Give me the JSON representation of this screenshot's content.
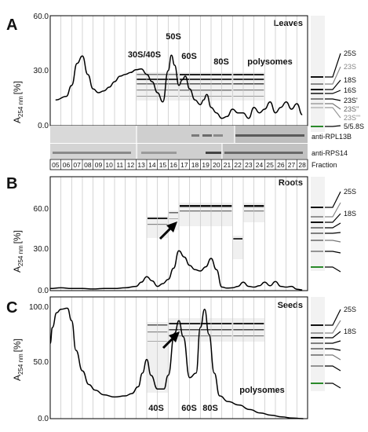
{
  "figure": {
    "panels": [
      {
        "letter": "A",
        "tissue": "Leaves",
        "ylabel_main": "A",
        "ylabel_sub": "254 nm",
        "ylabel_unit": "[%]",
        "yticks": [
          "60.0",
          "30.0",
          "0.0"
        ],
        "peak_labels": [
          "30S/40S",
          "50S",
          "60S",
          "80S",
          "polysomes"
        ],
        "rrna_labels": [
          "25S",
          "23S",
          "18S",
          "16S",
          "23S'",
          "23S''",
          "23S'''",
          "5/5.8S"
        ],
        "blot_labels": [
          "anti-RPL13B",
          "anti-RPS14"
        ],
        "fraction_label": "Fraction",
        "fractions": [
          "05",
          "06",
          "07",
          "08",
          "09",
          "10",
          "11",
          "12",
          "13",
          "14",
          "15",
          "16",
          "17",
          "18",
          "19",
          "20",
          "21",
          "22",
          "23",
          "24",
          "25",
          "26",
          "27",
          "28"
        ]
      },
      {
        "letter": "B",
        "tissue": "Roots",
        "ylabel_main": "A",
        "ylabel_sub": "254 nm",
        "ylabel_unit": "[%]",
        "yticks": [
          "60.0",
          "30.0",
          "0.0"
        ],
        "rrna_labels": [
          "25S",
          "18S"
        ]
      },
      {
        "letter": "C",
        "tissue": "Seeds",
        "ylabel_main": "A",
        "ylabel_sub": "254 nm",
        "ylabel_unit": "[%]",
        "yticks": [
          "100.0",
          "50.0",
          "0.0"
        ],
        "peak_labels": [
          "40S",
          "60S",
          "80S",
          "polysomes"
        ],
        "rrna_labels": [
          "25S",
          "18S"
        ]
      }
    ]
  },
  "chart_data": [
    {
      "type": "line",
      "panel": "A",
      "ylabel": "A254 nm [%]",
      "ylim": [
        0,
        60
      ],
      "x_fraction": [
        5.5,
        6.5,
        7.0,
        7.5,
        8.0,
        8.5,
        9.0,
        9.5,
        10.0,
        10.5,
        11.0,
        11.5,
        12.0,
        12.5,
        13.0,
        13.5,
        14.0,
        14.5,
        15.0,
        15.5,
        16.0,
        16.3,
        16.6,
        17.0,
        17.3,
        17.6,
        18.0,
        18.5,
        19.0,
        19.3,
        19.6,
        20.0,
        20.5,
        21.0,
        21.5,
        22.0,
        22.5,
        23.0,
        23.5,
        24.0,
        24.5,
        25.0,
        25.5,
        26.0,
        26.5,
        27.0,
        27.5,
        28.0,
        28.5
      ],
      "values": [
        14,
        16,
        22,
        34,
        38,
        28,
        20,
        18,
        19,
        21,
        24,
        27,
        28,
        29,
        30.5,
        31,
        28,
        24,
        18,
        13,
        30,
        38.5,
        33,
        22,
        25,
        27,
        20,
        14,
        11.5,
        14,
        17,
        10,
        7,
        4,
        5,
        9,
        7,
        7,
        4,
        10,
        7,
        9,
        13,
        7,
        10,
        13,
        9,
        12,
        6
      ]
    },
    {
      "type": "line",
      "panel": "B",
      "ylabel": "A254 nm [%]",
      "ylim": [
        0,
        60
      ],
      "x_fraction": [
        5.0,
        6.0,
        7.0,
        8.0,
        9.0,
        10.0,
        11.0,
        12.0,
        13.0,
        13.5,
        14.0,
        14.5,
        15.0,
        15.5,
        16.0,
        16.5,
        17.0,
        17.5,
        18.0,
        18.5,
        19.0,
        19.5,
        20.0,
        20.5,
        21.0,
        21.5,
        22.0,
        22.5,
        23.0,
        23.5,
        24.0,
        24.5,
        25.0,
        25.5,
        26.0,
        26.5,
        27.0,
        27.5,
        28.0,
        28.5
      ],
      "values": [
        1.5,
        2.0,
        1.5,
        1.5,
        1.2,
        1.5,
        1.5,
        2.0,
        3.0,
        6.0,
        10.0,
        7.0,
        3.0,
        5.0,
        8.0,
        16.0,
        28.5,
        24.0,
        18.0,
        15.0,
        14.0,
        17.0,
        23.0,
        15.0,
        2.5,
        1.8,
        2.0,
        3.0,
        6.0,
        3.0,
        2.5,
        3.5,
        6.0,
        3.5,
        6.5,
        3.0,
        2.5,
        3.0,
        1.0,
        0.5
      ]
    },
    {
      "type": "line",
      "panel": "C",
      "ylabel": "A254 nm [%]",
      "ylim": [
        0,
        100
      ],
      "x_fraction": [
        4.9,
        5.2,
        5.6,
        6.0,
        6.6,
        7.0,
        7.4,
        8.0,
        8.6,
        9.2,
        10.0,
        11.0,
        12.0,
        12.6,
        13.2,
        13.6,
        14.0,
        14.4,
        15.0,
        15.6,
        16.0,
        16.6,
        17.0,
        17.4,
        18.0,
        18.6,
        19.0,
        19.4,
        19.8,
        20.3,
        20.8,
        21.6,
        22.6,
        23.6,
        24.6,
        25.6,
        26.6,
        27.6,
        28.6
      ],
      "values": [
        66,
        80,
        93,
        96,
        97,
        86,
        60,
        42,
        30,
        25,
        21,
        19,
        20,
        22,
        28,
        40,
        52,
        38,
        26,
        26,
        38,
        75,
        86,
        72,
        36,
        40,
        80,
        96,
        74,
        40,
        20,
        15,
        12,
        8,
        5,
        3,
        1.5,
        0.5,
        0
      ]
    }
  ]
}
